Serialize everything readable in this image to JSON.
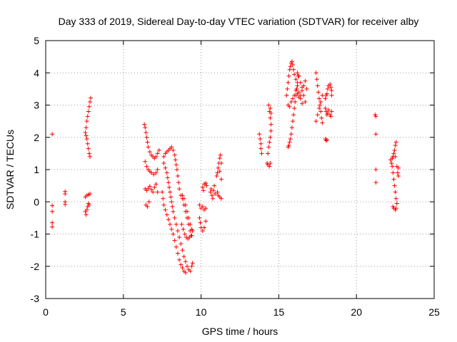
{
  "chart_data": {
    "type": "scatter",
    "title": "Day 333 of 2019, Sidereal Day-to-day VTEC variation (SDTVAR) for receiver alby",
    "xlabel": "GPS time / hours",
    "ylabel": "SDTVAR / TECUs",
    "xlim": [
      0,
      25
    ],
    "ylim": [
      -3,
      5
    ],
    "xticks": [
      0,
      5,
      10,
      15,
      20,
      25
    ],
    "yticks": [
      -3,
      -2,
      -1,
      0,
      1,
      2,
      3,
      4,
      5
    ],
    "grid": true,
    "marker": "+",
    "color": "#ff0000",
    "series": [
      {
        "name": "SDTVAR",
        "points": [
          [
            0.42,
            2.1
          ],
          [
            0.42,
            -0.12
          ],
          [
            0.42,
            -0.3
          ],
          [
            0.42,
            -0.65
          ],
          [
            0.42,
            -0.78
          ],
          [
            1.25,
            0.32
          ],
          [
            1.25,
            0.25
          ],
          [
            1.25,
            0.0
          ],
          [
            1.25,
            -0.08
          ],
          [
            2.55,
            2.15
          ],
          [
            2.6,
            2.05
          ],
          [
            2.65,
            1.95
          ],
          [
            2.7,
            1.8
          ],
          [
            2.75,
            1.65
          ],
          [
            2.8,
            1.5
          ],
          [
            2.85,
            1.4
          ],
          [
            2.6,
            2.3
          ],
          [
            2.65,
            2.5
          ],
          [
            2.7,
            2.65
          ],
          [
            2.75,
            2.8
          ],
          [
            2.8,
            2.95
          ],
          [
            2.85,
            3.1
          ],
          [
            2.9,
            3.22
          ],
          [
            2.55,
            -0.3
          ],
          [
            2.6,
            -0.4
          ],
          [
            2.65,
            -0.25
          ],
          [
            2.7,
            -0.15
          ],
          [
            2.75,
            -0.05
          ],
          [
            2.8,
            -0.1
          ],
          [
            2.55,
            0.15
          ],
          [
            2.65,
            0.2
          ],
          [
            2.75,
            0.22
          ],
          [
            2.85,
            0.25
          ],
          [
            6.35,
            2.4
          ],
          [
            6.4,
            2.3
          ],
          [
            6.45,
            2.15
          ],
          [
            6.5,
            2.0
          ],
          [
            6.55,
            1.85
          ],
          [
            6.6,
            1.7
          ],
          [
            6.7,
            1.55
          ],
          [
            6.8,
            1.45
          ],
          [
            6.9,
            1.4
          ],
          [
            7.0,
            1.35
          ],
          [
            7.1,
            1.4
          ],
          [
            7.2,
            1.5
          ],
          [
            7.3,
            1.6
          ],
          [
            6.4,
            1.25
          ],
          [
            6.5,
            1.1
          ],
          [
            6.6,
            1.0
          ],
          [
            6.7,
            0.95
          ],
          [
            6.8,
            0.9
          ],
          [
            6.95,
            0.85
          ],
          [
            7.1,
            0.9
          ],
          [
            7.2,
            1.0
          ],
          [
            6.4,
            0.4
          ],
          [
            6.5,
            0.35
          ],
          [
            6.6,
            0.42
          ],
          [
            6.7,
            0.48
          ],
          [
            6.8,
            0.38
          ],
          [
            6.9,
            0.3
          ],
          [
            7.0,
            0.45
          ],
          [
            7.1,
            0.55
          ],
          [
            7.2,
            0.3
          ],
          [
            6.45,
            -0.1
          ],
          [
            6.55,
            -0.15
          ],
          [
            6.65,
            0.0
          ],
          [
            7.6,
            1.2
          ],
          [
            7.7,
            1.05
          ],
          [
            7.8,
            0.9
          ],
          [
            7.85,
            0.75
          ],
          [
            7.9,
            0.6
          ],
          [
            7.95,
            0.45
          ],
          [
            8.0,
            0.3
          ],
          [
            8.05,
            0.15
          ],
          [
            8.1,
            0.0
          ],
          [
            8.15,
            -0.15
          ],
          [
            8.2,
            -0.3
          ],
          [
            8.3,
            -0.5
          ],
          [
            8.4,
            -0.7
          ],
          [
            8.5,
            -0.9
          ],
          [
            8.6,
            -1.1
          ],
          [
            8.7,
            -1.3
          ],
          [
            8.8,
            -1.5
          ],
          [
            8.9,
            -1.7
          ],
          [
            9.0,
            -1.85
          ],
          [
            9.1,
            -2.0
          ],
          [
            9.2,
            -2.1
          ],
          [
            9.3,
            -2.15
          ],
          [
            9.4,
            -2.0
          ],
          [
            9.45,
            -1.9
          ],
          [
            7.6,
            1.4
          ],
          [
            7.7,
            1.5
          ],
          [
            7.8,
            1.55
          ],
          [
            7.9,
            1.6
          ],
          [
            8.0,
            1.65
          ],
          [
            8.1,
            1.7
          ],
          [
            8.2,
            1.6
          ],
          [
            8.3,
            1.45
          ],
          [
            8.35,
            1.3
          ],
          [
            8.4,
            1.15
          ],
          [
            8.45,
            1.0
          ],
          [
            8.5,
            0.8
          ],
          [
            8.55,
            0.6
          ],
          [
            8.6,
            0.4
          ],
          [
            8.7,
            0.2
          ],
          [
            8.8,
            0.1
          ],
          [
            8.9,
            -0.1
          ],
          [
            9.0,
            -0.3
          ],
          [
            9.1,
            -0.5
          ],
          [
            9.2,
            -0.7
          ],
          [
            9.3,
            -0.9
          ],
          [
            9.4,
            -1.05
          ],
          [
            9.45,
            -0.9
          ],
          [
            7.5,
            0.3
          ],
          [
            7.55,
            0.1
          ],
          [
            7.6,
            -0.1
          ],
          [
            7.7,
            -0.25
          ],
          [
            7.8,
            -0.4
          ],
          [
            7.9,
            -0.55
          ],
          [
            8.0,
            -0.7
          ],
          [
            8.1,
            -0.85
          ],
          [
            8.2,
            -1.0
          ],
          [
            8.3,
            -1.2
          ],
          [
            8.4,
            -1.4
          ],
          [
            8.5,
            -1.6
          ],
          [
            8.6,
            -1.8
          ],
          [
            8.7,
            -1.95
          ],
          [
            8.8,
            -2.05
          ],
          [
            8.9,
            -2.15
          ],
          [
            9.0,
            -2.2
          ],
          [
            8.8,
            0.2
          ],
          [
            8.9,
            0.1
          ],
          [
            9.0,
            -0.1
          ],
          [
            9.1,
            -0.3
          ],
          [
            9.2,
            -0.5
          ],
          [
            9.3,
            -0.7
          ],
          [
            9.4,
            -0.85
          ],
          [
            8.75,
            -0.7
          ],
          [
            8.85,
            -0.85
          ],
          [
            8.95,
            -1.0
          ],
          [
            9.05,
            -1.1
          ],
          [
            9.15,
            -1.15
          ],
          [
            9.25,
            -1.1
          ],
          [
            9.35,
            -1.05
          ],
          [
            9.9,
            -0.1
          ],
          [
            10.0,
            -0.2
          ],
          [
            10.1,
            -0.15
          ],
          [
            10.2,
            -0.25
          ],
          [
            10.3,
            -0.2
          ],
          [
            9.9,
            -0.5
          ],
          [
            9.95,
            -0.65
          ],
          [
            10.0,
            -0.8
          ],
          [
            10.1,
            -0.9
          ],
          [
            10.2,
            -0.8
          ],
          [
            10.3,
            -0.6
          ],
          [
            10.1,
            0.45
          ],
          [
            10.15,
            0.35
          ],
          [
            10.2,
            0.55
          ],
          [
            10.3,
            0.58
          ],
          [
            10.35,
            0.5
          ],
          [
            10.6,
            0.3
          ],
          [
            10.65,
            0.4
          ],
          [
            10.7,
            0.2
          ],
          [
            10.75,
            0.1
          ],
          [
            10.8,
            0.35
          ],
          [
            10.85,
            0.5
          ],
          [
            10.9,
            0.25
          ],
          [
            11.0,
            0.8
          ],
          [
            11.05,
            0.9
          ],
          [
            11.1,
            1.05
          ],
          [
            11.15,
            1.2
          ],
          [
            11.2,
            1.35
          ],
          [
            11.25,
            1.45
          ],
          [
            11.3,
            1.2
          ],
          [
            11.2,
            0.95
          ],
          [
            11.3,
            0.7
          ],
          [
            11.05,
            0.3
          ],
          [
            11.1,
            0.2
          ],
          [
            11.2,
            0.15
          ],
          [
            11.3,
            0.1
          ],
          [
            13.75,
            2.1
          ],
          [
            13.8,
            1.95
          ],
          [
            13.85,
            1.8
          ],
          [
            13.85,
            1.65
          ],
          [
            13.9,
            1.5
          ],
          [
            14.25,
            1.2
          ],
          [
            14.3,
            1.15
          ],
          [
            14.4,
            1.1
          ],
          [
            14.45,
            1.2
          ],
          [
            14.3,
            1.5
          ],
          [
            14.35,
            1.7
          ],
          [
            14.4,
            1.85
          ],
          [
            14.45,
            2.0
          ],
          [
            14.5,
            2.2
          ],
          [
            14.5,
            2.4
          ],
          [
            14.45,
            2.6
          ],
          [
            14.4,
            2.8
          ],
          [
            14.35,
            3.0
          ],
          [
            14.45,
            2.9
          ],
          [
            14.5,
            2.75
          ],
          [
            15.6,
            1.7
          ],
          [
            15.65,
            1.75
          ],
          [
            15.7,
            1.85
          ],
          [
            15.75,
            1.95
          ],
          [
            15.8,
            2.1
          ],
          [
            15.85,
            2.3
          ],
          [
            15.9,
            2.5
          ],
          [
            15.95,
            2.7
          ],
          [
            16.0,
            2.9
          ],
          [
            16.05,
            3.1
          ],
          [
            16.1,
            3.3
          ],
          [
            16.15,
            3.5
          ],
          [
            16.2,
            3.7
          ],
          [
            16.25,
            3.9
          ],
          [
            15.5,
            3.3
          ],
          [
            15.55,
            3.5
          ],
          [
            15.6,
            3.7
          ],
          [
            15.65,
            3.9
          ],
          [
            15.7,
            4.1
          ],
          [
            15.75,
            4.2
          ],
          [
            15.8,
            4.3
          ],
          [
            15.85,
            4.35
          ],
          [
            15.9,
            4.25
          ],
          [
            15.95,
            4.1
          ],
          [
            16.0,
            3.95
          ],
          [
            16.1,
            3.8
          ],
          [
            16.2,
            3.6
          ],
          [
            16.3,
            3.4
          ],
          [
            16.4,
            3.2
          ],
          [
            16.5,
            3.05
          ],
          [
            15.6,
            3.0
          ],
          [
            15.7,
            2.95
          ],
          [
            15.8,
            3.1
          ],
          [
            15.9,
            3.2
          ],
          [
            16.0,
            3.3
          ],
          [
            16.1,
            3.45
          ],
          [
            16.2,
            3.35
          ],
          [
            16.3,
            3.25
          ],
          [
            16.4,
            3.3
          ],
          [
            16.5,
            3.45
          ],
          [
            16.6,
            3.6
          ],
          [
            16.7,
            3.75
          ],
          [
            16.8,
            3.5
          ],
          [
            16.2,
            4.0
          ],
          [
            16.3,
            3.9
          ],
          [
            16.4,
            3.7
          ],
          [
            16.5,
            3.55
          ],
          [
            16.6,
            3.3
          ],
          [
            16.7,
            3.1
          ],
          [
            17.4,
            4.0
          ],
          [
            17.45,
            3.8
          ],
          [
            17.5,
            3.6
          ],
          [
            17.55,
            3.4
          ],
          [
            17.6,
            3.2
          ],
          [
            17.65,
            3.0
          ],
          [
            17.7,
            2.8
          ],
          [
            17.75,
            2.6
          ],
          [
            17.8,
            2.45
          ],
          [
            17.4,
            2.5
          ],
          [
            17.5,
            2.7
          ],
          [
            17.6,
            2.9
          ],
          [
            17.7,
            3.1
          ],
          [
            17.8,
            3.3
          ],
          [
            18.0,
            3.2
          ],
          [
            18.05,
            3.3
          ],
          [
            18.1,
            3.35
          ],
          [
            18.15,
            3.5
          ],
          [
            18.2,
            3.6
          ],
          [
            18.3,
            3.65
          ],
          [
            18.35,
            3.55
          ],
          [
            18.4,
            3.45
          ],
          [
            18.4,
            3.3
          ],
          [
            18.0,
            2.9
          ],
          [
            18.05,
            2.8
          ],
          [
            18.1,
            2.7
          ],
          [
            18.15,
            2.75
          ],
          [
            18.2,
            2.85
          ],
          [
            18.3,
            2.7
          ],
          [
            18.35,
            2.65
          ],
          [
            18.4,
            2.8
          ],
          [
            18.0,
            1.95
          ],
          [
            18.05,
            1.9
          ],
          [
            18.1,
            1.92
          ],
          [
            21.2,
            2.7
          ],
          [
            21.25,
            2.65
          ],
          [
            21.25,
            2.1
          ],
          [
            21.25,
            1.0
          ],
          [
            21.25,
            0.6
          ],
          [
            22.2,
            1.3
          ],
          [
            22.25,
            1.2
          ],
          [
            22.3,
            1.35
          ],
          [
            22.35,
            1.4
          ],
          [
            22.4,
            1.5
          ],
          [
            22.45,
            1.6
          ],
          [
            22.5,
            1.75
          ],
          [
            22.55,
            1.85
          ],
          [
            22.5,
            1.4
          ],
          [
            22.3,
            1.1
          ],
          [
            22.35,
            0.9
          ],
          [
            22.4,
            0.7
          ],
          [
            22.45,
            0.5
          ],
          [
            22.5,
            0.3
          ],
          [
            22.55,
            0.1
          ],
          [
            22.6,
            -0.05
          ],
          [
            22.55,
            -0.2
          ],
          [
            22.5,
            -0.25
          ],
          [
            22.4,
            -0.2
          ],
          [
            22.35,
            -0.15
          ],
          [
            22.6,
            1.1
          ],
          [
            22.65,
            0.9
          ],
          [
            22.7,
            0.8
          ],
          [
            22.7,
            1.05
          ]
        ]
      }
    ]
  }
}
